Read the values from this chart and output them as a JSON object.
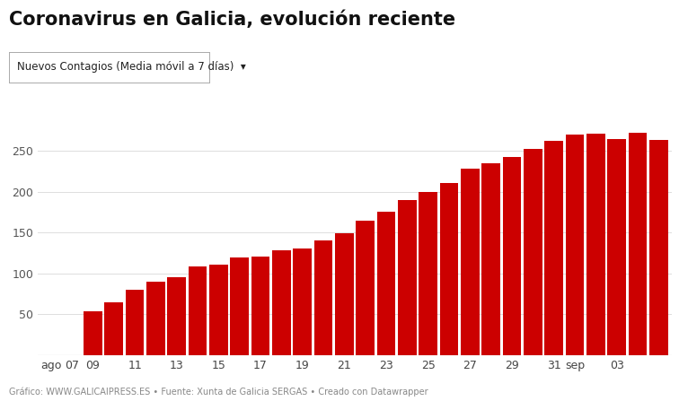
{
  "title": "Coronavirus en Galicia, evolución reciente",
  "subtitle": "Nuevos Contagios (Media móvil a 7 días)  ▾",
  "footer": "Gráfico: WWW.GALICAIPRESS.ES • Fuente: Xunta de Galicia SERGAS • Creado con Datawrapper",
  "bar_color": "#cc0000",
  "background_color": "#ffffff",
  "x_tick_labels": [
    "ago",
    "07",
    "09",
    "11",
    "13",
    "15",
    "17",
    "19",
    "21",
    "23",
    "25",
    "27",
    "29",
    "31",
    "sep",
    "03"
  ],
  "values": [
    0,
    0,
    54,
    65,
    80,
    90,
    95,
    108,
    111,
    120,
    121,
    128,
    130,
    140,
    149,
    165,
    176,
    190,
    200,
    211,
    228,
    235,
    243,
    253,
    263,
    270,
    271,
    265,
    272,
    264
  ],
  "ylim": [
    0,
    300
  ],
  "y_ticks": [
    50,
    100,
    150,
    200,
    250
  ],
  "grid_color": "#dddddd",
  "title_fontsize": 15,
  "subtitle_fontsize": 8.5,
  "tick_fontsize": 9,
  "footer_fontsize": 7
}
